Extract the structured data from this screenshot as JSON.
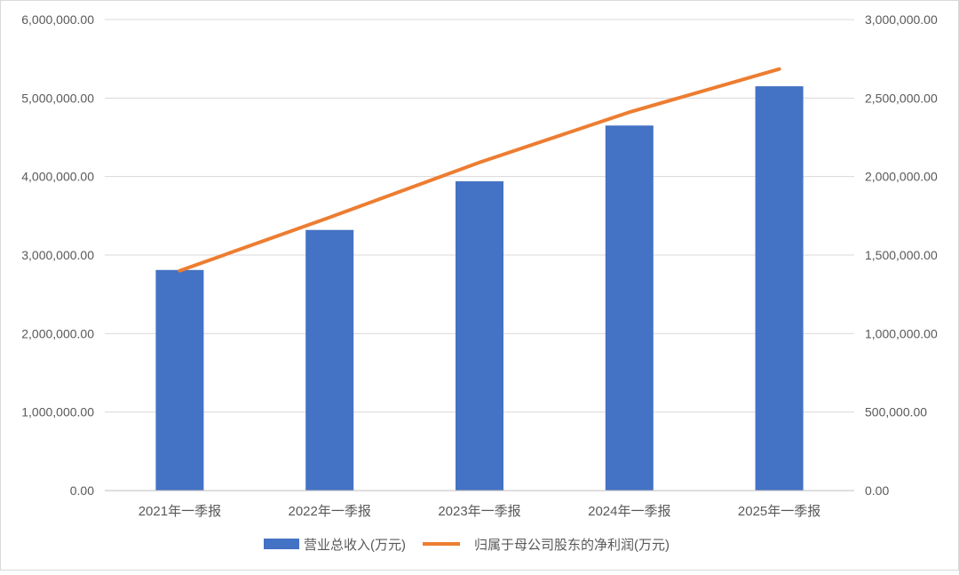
{
  "chart_data": {
    "type": "bar-line-combo",
    "categories": [
      "2021年一季报",
      "2022年一季报",
      "2023年一季报",
      "2024年一季报",
      "2025年一季报"
    ],
    "series": [
      {
        "name": "营业总收入(万元)",
        "type": "bar",
        "axis": "left",
        "color": "#4472C4",
        "values": [
          2810000,
          3320000,
          3940000,
          4650000,
          5150000
        ]
      },
      {
        "name": "归属于母公司股东的净利润(万元)",
        "type": "line",
        "axis": "right",
        "color": "#ED7D31",
        "values": [
          1400000,
          1740000,
          2090000,
          2410000,
          2685000
        ]
      }
    ],
    "y_left": {
      "lim": [
        0,
        6000000
      ],
      "ticks": [
        "0.00",
        "1,000,000.00",
        "2,000,000.00",
        "3,000,000.00",
        "4,000,000.00",
        "5,000,000.00",
        "6,000,000.00"
      ]
    },
    "y_right": {
      "lim": [
        0,
        3000000
      ],
      "ticks": [
        "0.00",
        "500,000.00",
        "1,000,000.00",
        "1,500,000.00",
        "2,000,000.00",
        "2,500,000.00",
        "3,000,000.00"
      ]
    },
    "grid": true,
    "legend": "bottom-center"
  }
}
